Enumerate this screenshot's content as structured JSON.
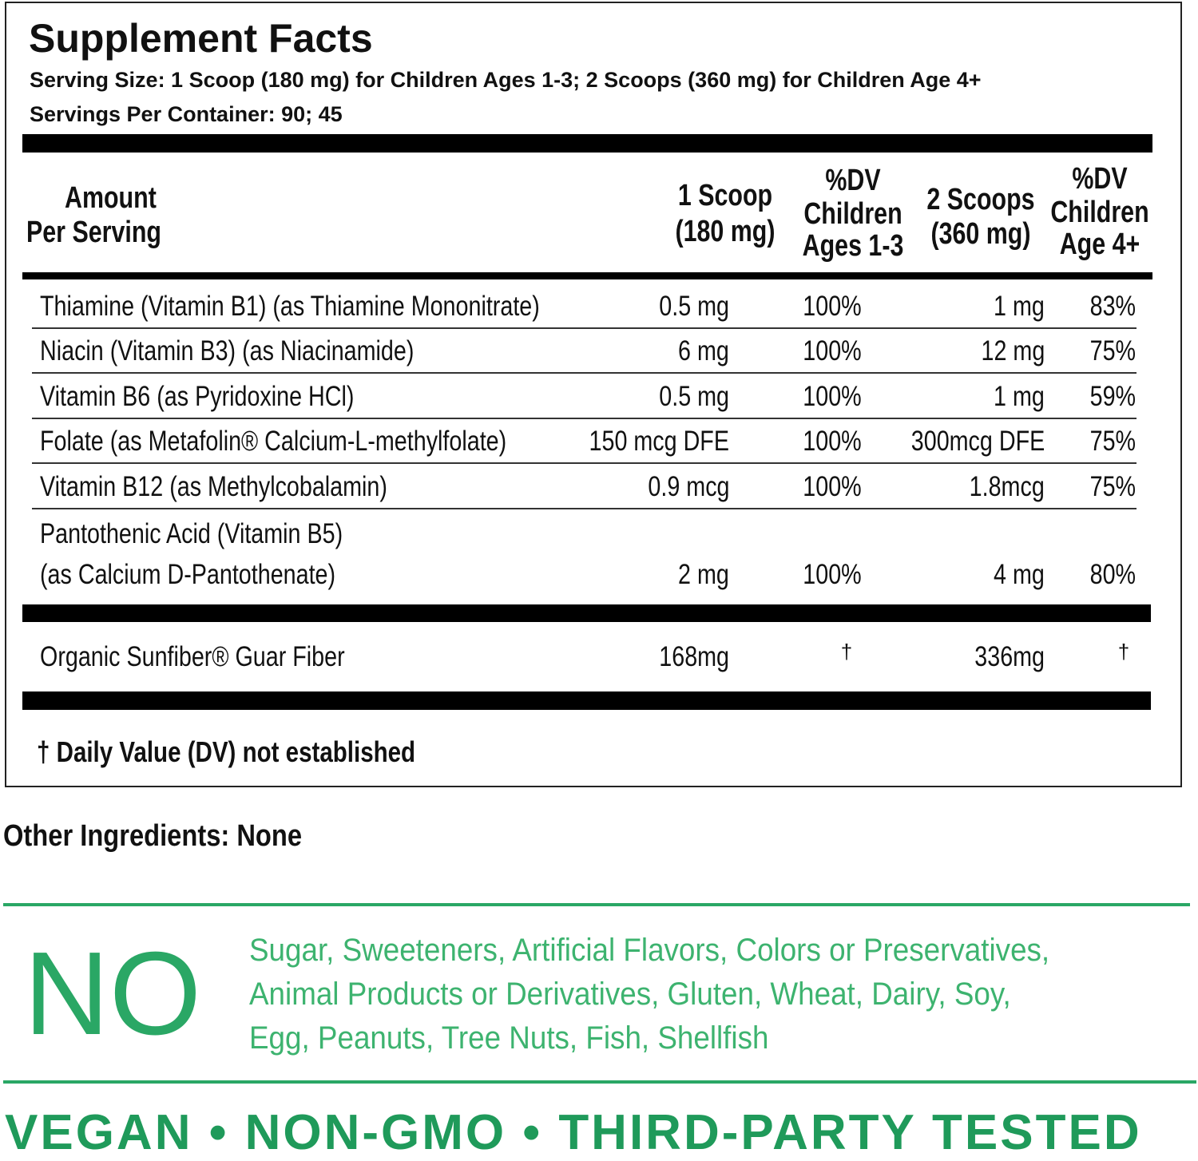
{
  "title": "Supplement Facts",
  "serving_size": "Serving Size: 1 Scoop (180 mg) for Children Ages 1-3; 2 Scoops (360 mg) for Children Age 4+",
  "servings_per_container": "Servings Per Container: 90; 45",
  "table": {
    "headers": [
      [
        "Amount",
        "Per Serving"
      ],
      [
        "1 Scoop",
        "(180 mg)"
      ],
      [
        "%DV",
        "Children",
        "Ages 1-3"
      ],
      [
        "2 Scoops",
        "(360 mg)"
      ],
      [
        "%DV",
        "Children",
        "Age 4+"
      ]
    ],
    "rows": [
      {
        "name": [
          "Thiamine (Vitamin B1) (as Thiamine Mononitrate)"
        ],
        "cells": [
          "0.5 mg",
          "100%",
          "1 mg",
          "83%"
        ]
      },
      {
        "name": [
          "Niacin (Vitamin B3) (as Niacinamide)"
        ],
        "cells": [
          "6 mg",
          "100%",
          "12 mg",
          "75%"
        ]
      },
      {
        "name": [
          "Vitamin B6 (as Pyridoxine HCl)"
        ],
        "cells": [
          "0.5 mg",
          "100%",
          "1 mg",
          "59%"
        ]
      },
      {
        "name": [
          "Folate (as Metafolin® Calcium-L-methylfolate)"
        ],
        "cells": [
          "150 mcg DFE",
          "100%",
          "300mcg DFE",
          "75%"
        ]
      },
      {
        "name": [
          "Vitamin B12 (as Methylcobalamin)"
        ],
        "cells": [
          "0.9 mcg",
          "100%",
          "1.8mcg",
          "75%"
        ]
      },
      {
        "name": [
          "Pantothenic Acid (Vitamin B5)",
          "(as Calcium D-Pantothenate)"
        ],
        "cells": [
          "2 mg",
          "100%",
          "4 mg",
          "80%"
        ]
      }
    ],
    "extra_row": {
      "name": [
        "Organic Sunfiber® Guar Fiber"
      ],
      "cells": [
        "168mg",
        "†",
        "336mg",
        "†"
      ]
    }
  },
  "footnote": "† Daily Value (DV) not established",
  "other_ingredients": "Other Ingredients: None",
  "free_from": {
    "label": "NO",
    "items": [
      "Sugar, Sweeteners, Artificial Flavors, Colors or Preservatives,",
      "Animal Products or Derivatives, Gluten, Wheat, Dairy, Soy,",
      "Egg, Peanuts, Tree Nuts, Fish, Shellfish"
    ]
  },
  "badges": "VEGAN • NON-GMO • THIRD-PARTY TESTED"
}
